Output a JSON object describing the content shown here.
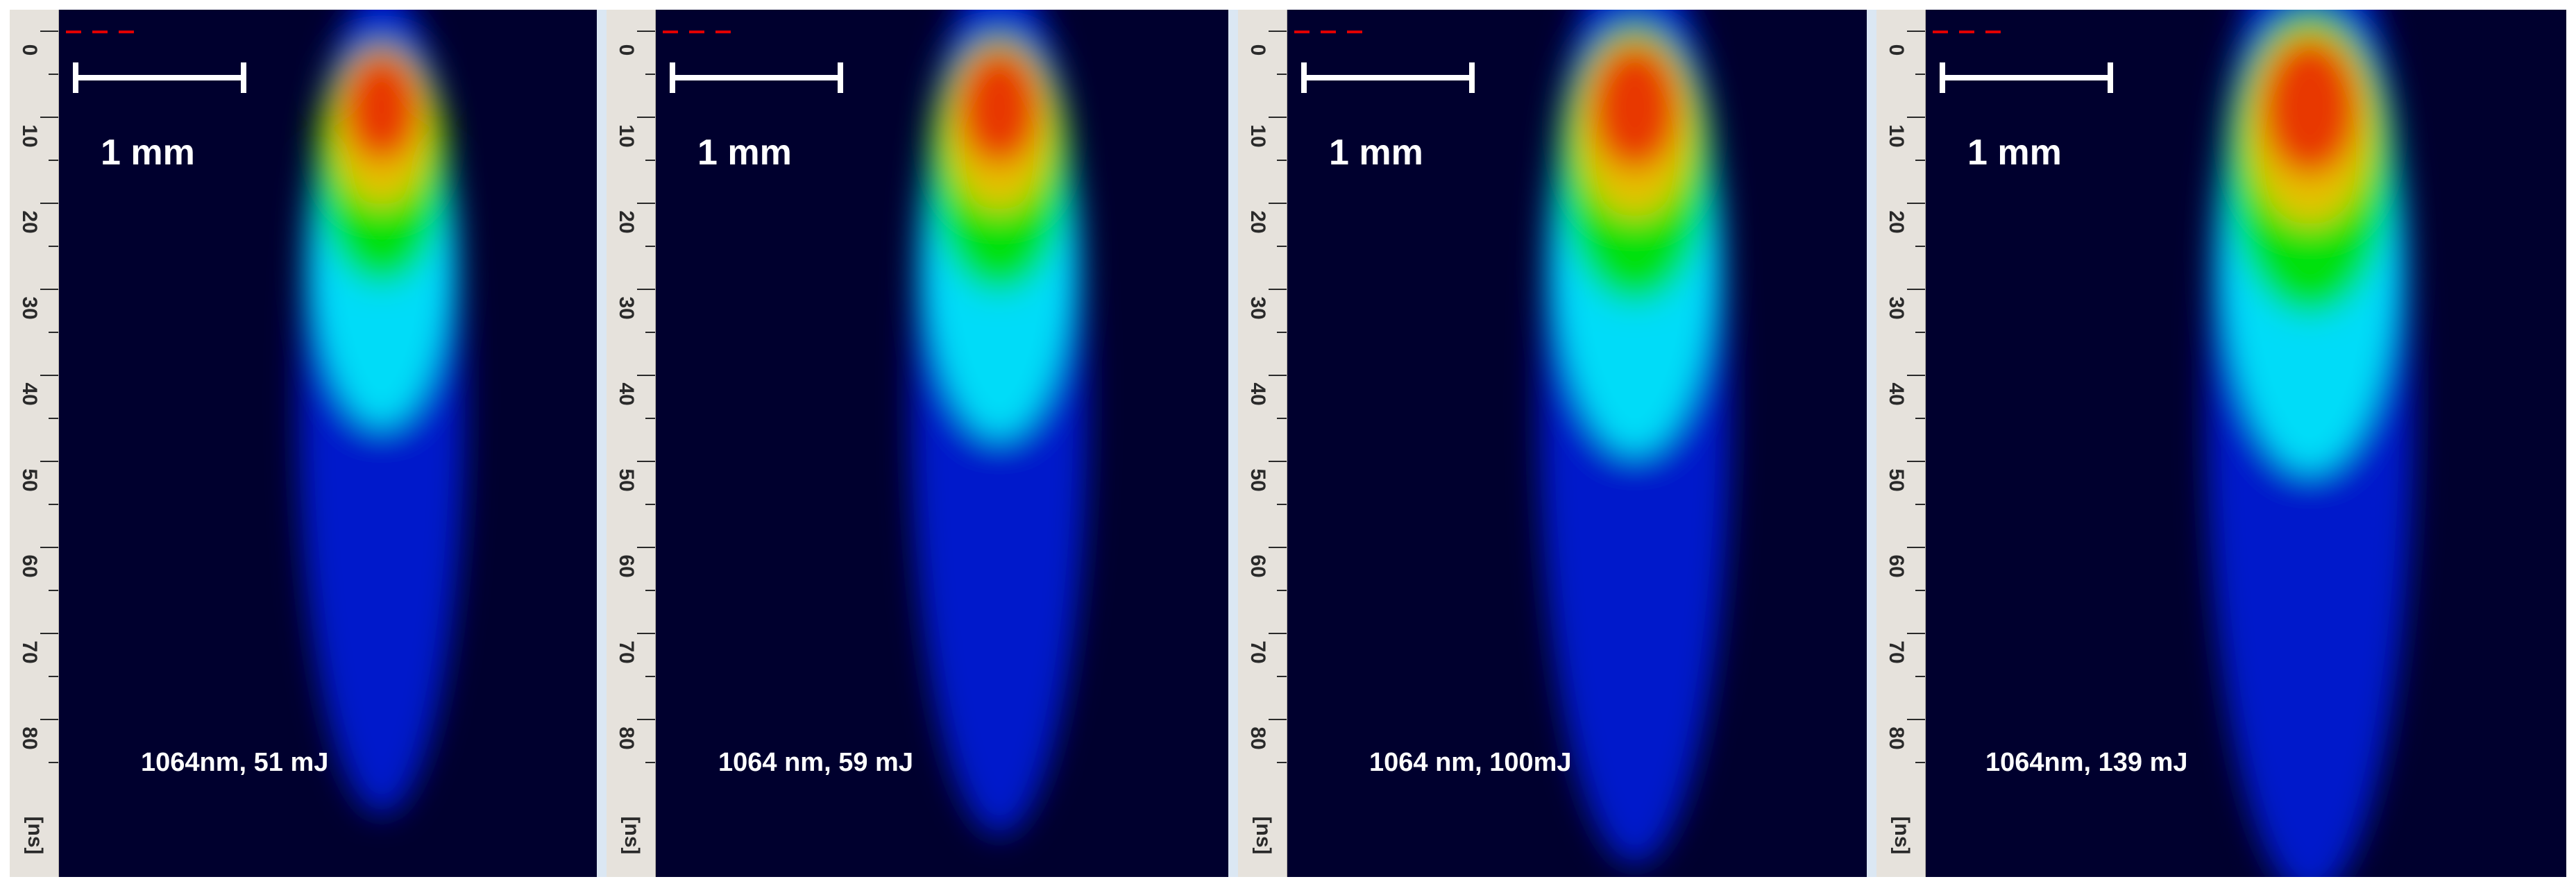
{
  "ruler": {
    "ticks": [
      "0",
      "10",
      "20",
      "30",
      "40",
      "50",
      "60",
      "70",
      "80"
    ],
    "unit": "[ns]"
  },
  "scale_bar": {
    "label": "1 mm"
  },
  "panels": [
    {
      "caption": "1064nm, 51 mJ",
      "plume_intensity": 0.8
    },
    {
      "caption": "1064 nm, 59 mJ",
      "plume_intensity": 0.85
    },
    {
      "caption": "1064 nm, 100mJ",
      "plume_intensity": 0.92
    },
    {
      "caption": "1064nm, 139 mJ",
      "plume_intensity": 1.0
    }
  ],
  "colors": {
    "background": "#00002e",
    "plume_core": "#e83000",
    "plume_mid": "#f0c000",
    "plume_outer": "#00e000",
    "plume_halo": "#00ffff",
    "plume_tail": "#0020ff",
    "ruler_bg": "#e6e2dc",
    "marker": "#e00000"
  }
}
